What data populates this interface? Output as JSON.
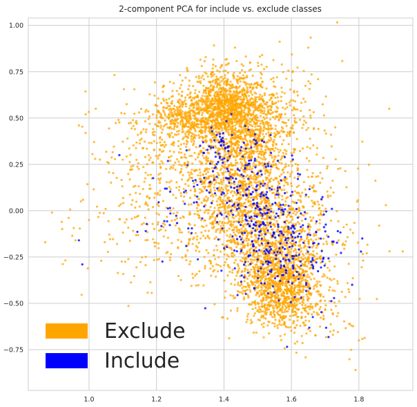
{
  "chart_data": {
    "type": "scatter",
    "title": "2-component PCA for include vs. exclude classes",
    "xlabel": "",
    "ylabel": "",
    "xlim": [
      0.82,
      1.96
    ],
    "ylim": [
      -0.97,
      1.04
    ],
    "x_ticks": [
      1.0,
      1.2,
      1.4,
      1.6,
      1.8
    ],
    "x_tick_labels": [
      "1.0",
      "1.2",
      "1.4",
      "1.6",
      "1.8"
    ],
    "y_ticks": [
      1.0,
      0.75,
      0.5,
      0.25,
      0.0,
      -0.25,
      -0.5,
      -0.75
    ],
    "y_tick_labels": [
      "1.00",
      "0.75",
      "0.50",
      "0.25",
      "0.00",
      "−0.25",
      "−0.50",
      "−0.75"
    ],
    "grid": true,
    "legend_position": "lower-left",
    "series": [
      {
        "name": "Exclude",
        "color": "#ffa500",
        "clusters": [
          {
            "cx": 1.4,
            "cy": 0.58,
            "sx": 0.05,
            "sy": 0.09,
            "n": 700
          },
          {
            "cx": 1.3,
            "cy": 0.5,
            "sx": 0.06,
            "sy": 0.07,
            "n": 450
          },
          {
            "cx": 1.48,
            "cy": 0.5,
            "sx": 0.07,
            "sy": 0.12,
            "n": 650
          },
          {
            "cx": 1.45,
            "cy": 0.25,
            "sx": 0.09,
            "sy": 0.16,
            "n": 650
          },
          {
            "cx": 1.48,
            "cy": 0.02,
            "sx": 0.08,
            "sy": 0.16,
            "n": 800
          },
          {
            "cx": 1.55,
            "cy": -0.3,
            "sx": 0.07,
            "sy": 0.14,
            "n": 950
          },
          {
            "cx": 1.58,
            "cy": -0.45,
            "sx": 0.05,
            "sy": 0.1,
            "n": 550
          },
          {
            "cx": 1.28,
            "cy": 0.05,
            "sx": 0.09,
            "sy": 0.25,
            "n": 250
          },
          {
            "cx": 1.2,
            "cy": 0.35,
            "sx": 0.09,
            "sy": 0.16,
            "n": 160
          },
          {
            "cx": 1.15,
            "cy": -0.1,
            "sx": 0.12,
            "sy": 0.18,
            "n": 90
          },
          {
            "cx": 1.68,
            "cy": -0.1,
            "sx": 0.07,
            "sy": 0.22,
            "n": 180
          },
          {
            "cx": 1.62,
            "cy": 0.6,
            "sx": 0.05,
            "sy": 0.15,
            "n": 50
          },
          {
            "cx": 1.72,
            "cy": -0.55,
            "sx": 0.05,
            "sy": 0.12,
            "n": 40
          }
        ],
        "outliers": [
          [
            0.87,
            -0.17
          ],
          [
            0.89,
            -0.01
          ],
          [
            0.97,
            0.46
          ],
          [
            0.99,
            0.52
          ],
          [
            1.0,
            -0.05
          ],
          [
            1.02,
            0.55
          ],
          [
            0.96,
            -0.16
          ],
          [
            1.86,
            -0.08
          ],
          [
            1.88,
            0.03
          ],
          [
            1.93,
            -0.22
          ],
          [
            1.89,
            0.55
          ],
          [
            1.79,
            -0.86
          ],
          [
            1.8,
            -0.7
          ],
          [
            1.73,
            0.45
          ],
          [
            1.65,
            0.88
          ]
        ]
      },
      {
        "name": "Include",
        "color": "#0000ff",
        "clusters": [
          {
            "cx": 1.55,
            "cy": -0.15,
            "sx": 0.07,
            "sy": 0.16,
            "n": 260
          },
          {
            "cx": 1.45,
            "cy": 0.15,
            "sx": 0.07,
            "sy": 0.13,
            "n": 140
          },
          {
            "cx": 1.4,
            "cy": 0.35,
            "sx": 0.05,
            "sy": 0.07,
            "n": 40
          },
          {
            "cx": 1.3,
            "cy": 0.0,
            "sx": 0.08,
            "sy": 0.15,
            "n": 40
          },
          {
            "cx": 1.68,
            "cy": -0.25,
            "sx": 0.05,
            "sy": 0.15,
            "n": 50
          }
        ],
        "outliers": [
          [
            0.98,
            -0.29
          ],
          [
            0.97,
            -0.16
          ],
          [
            1.09,
            0.3
          ],
          [
            1.81,
            -0.15
          ],
          [
            1.78,
            -0.4
          ],
          [
            1.72,
            0.01
          ]
        ]
      }
    ]
  }
}
